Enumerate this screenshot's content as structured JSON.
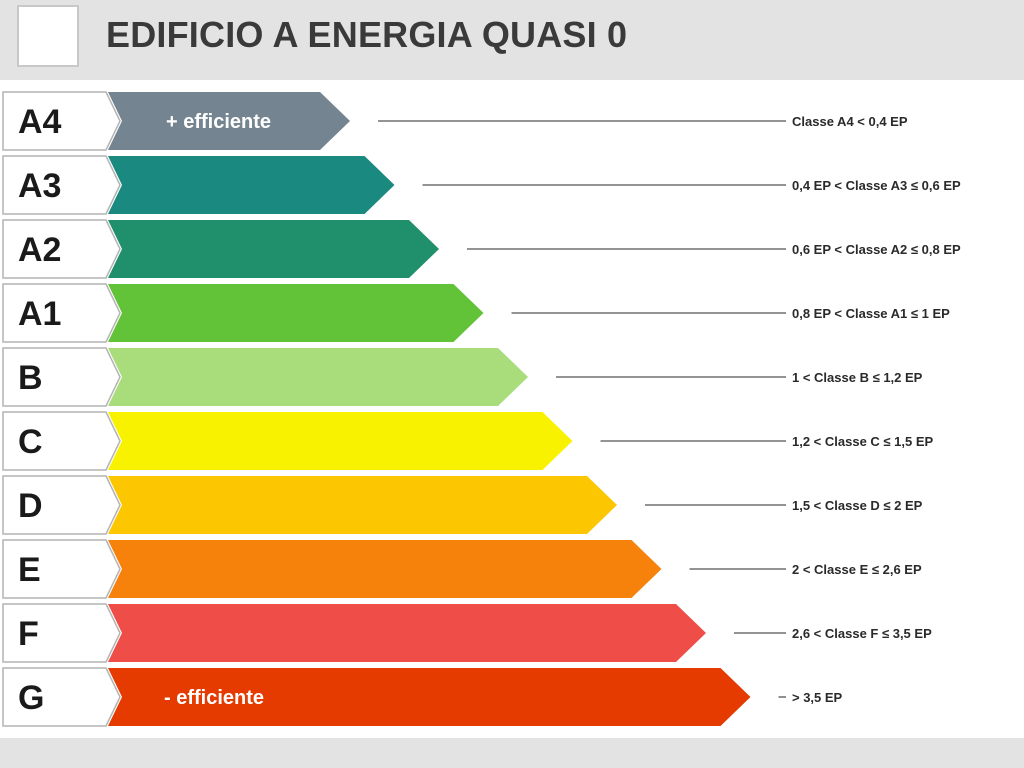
{
  "header": {
    "title": "EDIFICIO A ENERGIA QUASI 0"
  },
  "classes": [
    {
      "label": "A4",
      "color": "#748591",
      "bar_text": "+ efficiente",
      "range": "Classe A4 < 0,4 EP"
    },
    {
      "label": "A3",
      "color": "#1a8a80",
      "bar_text": "",
      "range": "0,4 EP < Classe A3 ≤ 0,6 EP"
    },
    {
      "label": "A2",
      "color": "#1f8f6c",
      "bar_text": "",
      "range": "0,6 EP < Classe A2 ≤ 0,8 EP"
    },
    {
      "label": "A1",
      "color": "#62c238",
      "bar_text": "",
      "range": "0,8 EP < Classe A1 ≤ 1 EP"
    },
    {
      "label": "B",
      "color": "#a9dd7c",
      "bar_text": "",
      "range": "1 < Classe B ≤ 1,2 EP"
    },
    {
      "label": "C",
      "color": "#f8f200",
      "bar_text": "",
      "range": "1,2 < Classe C ≤ 1,5 EP"
    },
    {
      "label": "D",
      "color": "#fcc600",
      "bar_text": "",
      "range": "1,5 < Classe D ≤ 2 EP"
    },
    {
      "label": "E",
      "color": "#f6820c",
      "bar_text": "",
      "range": "2 < Classe E ≤ 2,6 EP"
    },
    {
      "label": "F",
      "color": "#ee4d48",
      "bar_text": "",
      "range": "2,6 < Classe F ≤ 3,5 EP"
    },
    {
      "label": "G",
      "color": "#e53a00",
      "bar_text": "- efficiente",
      "range": "> 3,5 EP"
    }
  ],
  "colors": {
    "header_bg": "#e3e3e3",
    "connector": "#555555",
    "label_border": "#b4b4b4"
  }
}
